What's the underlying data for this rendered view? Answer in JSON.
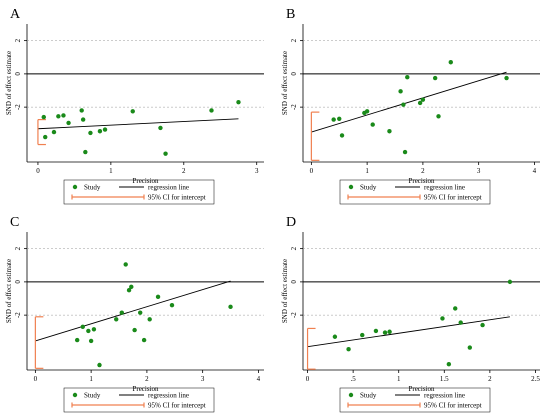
{
  "colors": {
    "study": "#1a8a1a",
    "ci": "#f08050",
    "line": "#000000",
    "axis": "#000000"
  },
  "legend": {
    "study": "Study",
    "regression": "regression line",
    "ci": "95% CI for intercept"
  },
  "chart_data": [
    {
      "panel": "A",
      "type": "scatter",
      "xlabel": "Precision",
      "ylabel": "SND of effect estimate",
      "xlim": [
        -0.15,
        3.1
      ],
      "ylim": [
        -5.3,
        3.0
      ],
      "xticks": [
        0,
        1,
        2,
        3
      ],
      "xtick_labels": [
        "0",
        "1",
        "2",
        "3"
      ],
      "yticks": [
        2,
        0,
        -2
      ],
      "ytick_labels": [
        "2",
        "0",
        "-2"
      ],
      "points": [
        {
          "x": 0.08,
          "y": -2.6
        },
        {
          "x": 0.1,
          "y": -3.8
        },
        {
          "x": 0.22,
          "y": -3.5
        },
        {
          "x": 0.28,
          "y": -2.55
        },
        {
          "x": 0.35,
          "y": -2.5
        },
        {
          "x": 0.42,
          "y": -2.95
        },
        {
          "x": 0.6,
          "y": -2.2
        },
        {
          "x": 0.62,
          "y": -2.75
        },
        {
          "x": 0.65,
          "y": -4.7
        },
        {
          "x": 0.72,
          "y": -3.55
        },
        {
          "x": 0.85,
          "y": -3.45
        },
        {
          "x": 0.92,
          "y": -3.35
        },
        {
          "x": 1.3,
          "y": -2.25
        },
        {
          "x": 1.68,
          "y": -3.25
        },
        {
          "x": 1.75,
          "y": -4.8
        },
        {
          "x": 2.38,
          "y": -2.2
        },
        {
          "x": 2.75,
          "y": -1.7
        }
      ],
      "regression": {
        "x0": 0,
        "y0": -3.3,
        "x1": 2.75,
        "y1": -2.7
      },
      "ci": [
        -2.75,
        -4.25
      ]
    },
    {
      "panel": "B",
      "type": "scatter",
      "xlabel": "Precision",
      "ylabel": "SND of effect estimate",
      "xlim": [
        -0.15,
        4.1
      ],
      "ylim": [
        -5.3,
        3.0
      ],
      "xticks": [
        0,
        1,
        2,
        3,
        4
      ],
      "xtick_labels": [
        "0",
        "1",
        "2",
        "3",
        "4"
      ],
      "yticks": [
        2,
        0,
        -2
      ],
      "ytick_labels": [
        "2",
        "0",
        "-2"
      ],
      "points": [
        {
          "x": 0.4,
          "y": -2.75
        },
        {
          "x": 0.5,
          "y": -2.7
        },
        {
          "x": 0.55,
          "y": -3.7
        },
        {
          "x": 0.95,
          "y": -2.35
        },
        {
          "x": 1.0,
          "y": -2.25
        },
        {
          "x": 1.1,
          "y": -3.05
        },
        {
          "x": 1.4,
          "y": -3.45
        },
        {
          "x": 1.6,
          "y": -1.05
        },
        {
          "x": 1.65,
          "y": -1.85
        },
        {
          "x": 1.68,
          "y": -4.7
        },
        {
          "x": 1.72,
          "y": -0.2
        },
        {
          "x": 1.95,
          "y": -1.75
        },
        {
          "x": 2.0,
          "y": -1.55
        },
        {
          "x": 2.22,
          "y": -0.25
        },
        {
          "x": 2.28,
          "y": -2.55
        },
        {
          "x": 2.5,
          "y": 0.7
        },
        {
          "x": 3.5,
          "y": -0.25
        }
      ],
      "regression": {
        "x0": 0,
        "y0": -3.5,
        "x1": 3.5,
        "y1": 0.1
      },
      "ci": [
        -2.3,
        -5.2
      ]
    },
    {
      "panel": "C",
      "type": "scatter",
      "xlabel": "Precision",
      "ylabel": "SND of effect estimate",
      "xlim": [
        -0.15,
        4.1
      ],
      "ylim": [
        -5.3,
        3.0
      ],
      "xticks": [
        0,
        1,
        2,
        3,
        4
      ],
      "xtick_labels": [
        "0",
        "1",
        "2",
        "3",
        "4"
      ],
      "yticks": [
        2,
        0,
        -2
      ],
      "ytick_labels": [
        "2",
        "0",
        "-2"
      ],
      "points": [
        {
          "x": 0.75,
          "y": -3.5
        },
        {
          "x": 0.85,
          "y": -2.7
        },
        {
          "x": 0.95,
          "y": -2.95
        },
        {
          "x": 1.0,
          "y": -3.55
        },
        {
          "x": 1.05,
          "y": -2.85
        },
        {
          "x": 1.15,
          "y": -5.0
        },
        {
          "x": 1.45,
          "y": -2.25
        },
        {
          "x": 1.55,
          "y": -1.85
        },
        {
          "x": 1.62,
          "y": 1.05
        },
        {
          "x": 1.68,
          "y": -0.5
        },
        {
          "x": 1.72,
          "y": -0.3
        },
        {
          "x": 1.78,
          "y": -2.9
        },
        {
          "x": 1.88,
          "y": -1.85
        },
        {
          "x": 1.95,
          "y": -3.5
        },
        {
          "x": 2.05,
          "y": -2.25
        },
        {
          "x": 2.2,
          "y": -0.9
        },
        {
          "x": 2.45,
          "y": -1.4
        },
        {
          "x": 3.5,
          "y": -1.5
        }
      ],
      "regression": {
        "x0": 0,
        "y0": -3.55,
        "x1": 3.5,
        "y1": 0.05
      },
      "ci": [
        -2.1,
        -5.2
      ]
    },
    {
      "panel": "D",
      "type": "scatter",
      "xlabel": "Precision",
      "ylabel": "SND of effect estimate",
      "xlim": [
        -0.05,
        2.55
      ],
      "ylim": [
        -5.3,
        3.0
      ],
      "xticks": [
        0,
        0.5,
        1,
        1.5,
        2,
        2.5
      ],
      "xtick_labels": [
        "0",
        ".5",
        "1",
        "1.5",
        "2",
        "2.5"
      ],
      "yticks": [
        2,
        0,
        -2
      ],
      "ytick_labels": [
        "2",
        "0",
        "-2"
      ],
      "points": [
        {
          "x": 0.3,
          "y": -3.3
        },
        {
          "x": 0.45,
          "y": -4.05
        },
        {
          "x": 0.6,
          "y": -3.2
        },
        {
          "x": 0.75,
          "y": -2.95
        },
        {
          "x": 0.85,
          "y": -3.05
        },
        {
          "x": 0.9,
          "y": -3.0
        },
        {
          "x": 1.48,
          "y": -2.2
        },
        {
          "x": 1.55,
          "y": -4.95
        },
        {
          "x": 1.62,
          "y": -1.6
        },
        {
          "x": 1.68,
          "y": -2.45
        },
        {
          "x": 1.78,
          "y": -3.95
        },
        {
          "x": 1.92,
          "y": -2.6
        },
        {
          "x": 2.22,
          "y": 0.0
        }
      ],
      "regression": {
        "x0": 0,
        "y0": -3.9,
        "x1": 2.22,
        "y1": -2.1
      },
      "ci": [
        -2.8,
        -5.25
      ]
    }
  ]
}
